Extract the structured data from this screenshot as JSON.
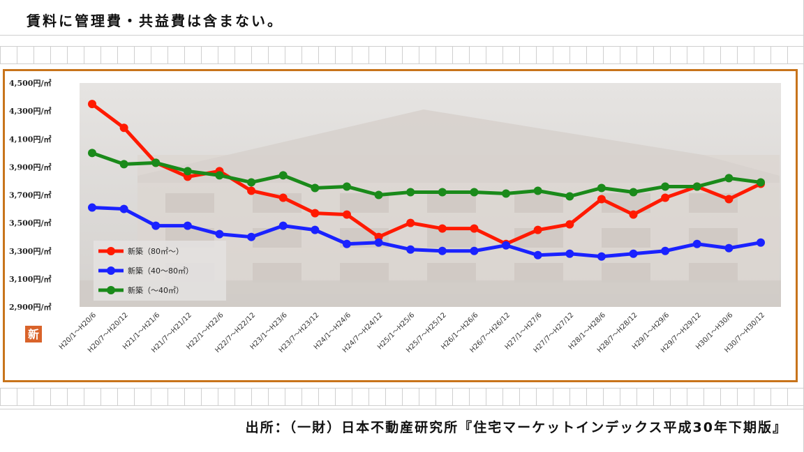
{
  "header_note": "賃料に管理費・共益費は含まない。",
  "source_text": "出所：（一財）日本不動産研究所『住宅マーケットインデックス平成30年下期版』",
  "badge_text": "新",
  "colors": {
    "frame": "#c8741b",
    "red": "#ff1a00",
    "blue": "#1a22ff",
    "green": "#1a8a1a",
    "badge": "#d9632a"
  },
  "chart_data": {
    "type": "line",
    "ylim": [
      2900,
      4500
    ],
    "yticks": [
      4500,
      4300,
      4100,
      3900,
      3700,
      3500,
      3300,
      3100,
      2900
    ],
    "ytick_labels": [
      "4,500円/㎡",
      "4,300円/㎡",
      "4,100円/㎡",
      "3,900円/㎡",
      "3,700円/㎡",
      "3,500円/㎡",
      "3,300円/㎡",
      "3,100円/㎡",
      "2,900円/㎡"
    ],
    "categories": [
      "H20/1～H20/6",
      "H20/7～H20/12",
      "H21/1～H21/6",
      "H21/7～H21/12",
      "H22/1～H22/6",
      "H22/7～H22/12",
      "H23/1～H23/6",
      "H23/7～H23/12",
      "H24/1～H24/6",
      "H24/7～H24/12",
      "H25/1～H25/6",
      "H25/7～H25/12",
      "H26/1～H26/6",
      "H26/7～H26/12",
      "H27/1～H27/6",
      "H27/7～H27/12",
      "H28/1～H28/6",
      "H28/7～H28/12",
      "H29/1～H29/6",
      "H29/7～H29/12",
      "H30/1～H30/6",
      "H30/7～H30/12"
    ],
    "series": [
      {
        "name": "新築（80㎡～）",
        "color": "#ff1a00",
        "values": [
          4350,
          4180,
          3930,
          3830,
          3870,
          3730,
          3680,
          3570,
          3560,
          3400,
          3500,
          3460,
          3460,
          3350,
          3450,
          3490,
          3670,
          3560,
          3680,
          3760,
          3670,
          3780
        ]
      },
      {
        "name": "新築（40～80㎡）",
        "color": "#1a22ff",
        "values": [
          3610,
          3600,
          3480,
          3480,
          3420,
          3400,
          3480,
          3450,
          3350,
          3360,
          3310,
          3300,
          3300,
          3340,
          3270,
          3280,
          3260,
          3280,
          3300,
          3350,
          3320,
          3360
        ]
      },
      {
        "name": "新築（～40㎡）",
        "color": "#1a8a1a",
        "values": [
          4000,
          3920,
          3930,
          3870,
          3840,
          3790,
          3840,
          3750,
          3760,
          3700,
          3720,
          3720,
          3720,
          3710,
          3730,
          3690,
          3750,
          3720,
          3760,
          3760,
          3820,
          3790
        ]
      }
    ],
    "legend_position": "lower-left"
  }
}
